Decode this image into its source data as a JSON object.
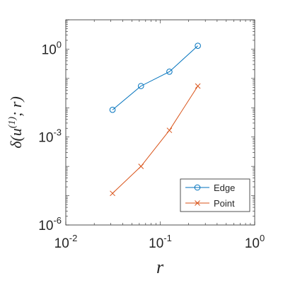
{
  "chart_data": {
    "type": "line",
    "xscale": "log",
    "yscale": "log",
    "xlim": [
      0.01,
      1
    ],
    "ylim": [
      1e-06,
      10
    ],
    "xticks": [
      0.01,
      0.1,
      1
    ],
    "yticks": [
      1e-06,
      0.001,
      1
    ],
    "xtick_labels": [
      {
        "base": "10",
        "exp": "-2"
      },
      {
        "base": "10",
        "exp": "-1"
      },
      {
        "base": "10",
        "exp": "0"
      }
    ],
    "ytick_labels": [
      {
        "base": "10",
        "exp": "-6"
      },
      {
        "base": "10",
        "exp": "-3"
      },
      {
        "base": "10",
        "exp": "0"
      }
    ],
    "xlabel": "r",
    "ylabel": {
      "pre": "δ(u",
      "sup": "(1)",
      "post": "; r)"
    },
    "legend_position": "bottom-right",
    "series": [
      {
        "name": "Edge",
        "color": "#0072BD",
        "marker": "circle",
        "x": [
          0.03125,
          0.0625,
          0.125,
          0.25
        ],
        "y": [
          0.0085,
          0.055,
          0.17,
          1.3
        ]
      },
      {
        "name": "Point",
        "color": "#D95319",
        "marker": "x",
        "x": [
          0.03125,
          0.0625,
          0.125,
          0.25
        ],
        "y": [
          1.2e-05,
          0.0001,
          0.0017,
          0.055
        ]
      }
    ]
  }
}
